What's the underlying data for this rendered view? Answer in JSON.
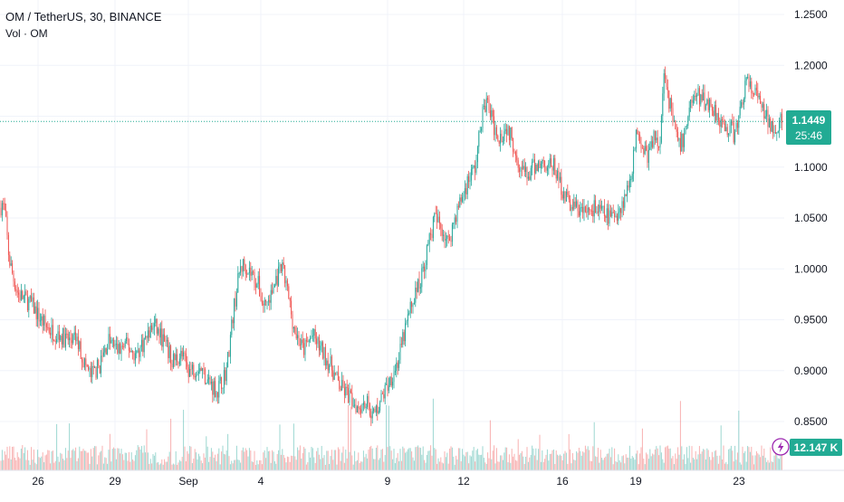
{
  "legend": {
    "symbol_title": "OM / TetherUS, 30, BINANCE",
    "volume_label": "Vol · OM"
  },
  "price_badge": {
    "price": "1.1449",
    "countdown": "25:46"
  },
  "volume_badge": {
    "value": "12.147 K"
  },
  "colors": {
    "up": "#26a69a",
    "down": "#ef5350",
    "last_price": "#22ab94",
    "grid": "#f0f3fa",
    "axis_text": "#131722"
  },
  "chart_data": {
    "type": "candlestick",
    "symbol": "OM / TetherUS",
    "interval": "30",
    "exchange": "BINANCE",
    "y_ticks": [
      0.85,
      0.9,
      0.95,
      1.0,
      1.05,
      1.1,
      1.15,
      1.2,
      1.25
    ],
    "y_tick_labels": [
      "0.8500",
      "0.9000",
      "0.9500",
      "1.0000",
      "1.0500",
      "1.1000",
      "1.1500",
      "1.2000",
      "1.2500"
    ],
    "ylim": [
      0.83,
      1.265
    ],
    "last_price": 1.1449,
    "x_ticks": [
      "26",
      "29",
      "Sep",
      "4",
      "9",
      "12",
      "16",
      "19",
      "23"
    ],
    "price_path": [
      [
        0,
        1.06
      ],
      [
        3,
        1.065
      ],
      [
        6,
        1.05
      ],
      [
        10,
        1.01
      ],
      [
        15,
        0.99
      ],
      [
        20,
        0.975
      ],
      [
        28,
        0.97
      ],
      [
        35,
        0.965
      ],
      [
        45,
        0.95
      ],
      [
        55,
        0.94
      ],
      [
        65,
        0.935
      ],
      [
        75,
        0.93
      ],
      [
        85,
        0.93
      ],
      [
        92,
        0.91
      ],
      [
        100,
        0.895
      ],
      [
        110,
        0.905
      ],
      [
        120,
        0.93
      ],
      [
        130,
        0.92
      ],
      [
        140,
        0.925
      ],
      [
        150,
        0.915
      ],
      [
        160,
        0.93
      ],
      [
        170,
        0.945
      ],
      [
        180,
        0.93
      ],
      [
        190,
        0.91
      ],
      [
        200,
        0.915
      ],
      [
        210,
        0.9
      ],
      [
        220,
        0.905
      ],
      [
        230,
        0.89
      ],
      [
        240,
        0.88
      ],
      [
        250,
        0.9
      ],
      [
        258,
        0.96
      ],
      [
        265,
        1.0
      ],
      [
        270,
        1.005
      ],
      [
        278,
        0.995
      ],
      [
        285,
        0.985
      ],
      [
        290,
        0.965
      ],
      [
        298,
        0.97
      ],
      [
        305,
        0.99
      ],
      [
        312,
        1.0
      ],
      [
        318,
        0.975
      ],
      [
        325,
        0.94
      ],
      [
        335,
        0.92
      ],
      [
        345,
        0.935
      ],
      [
        355,
        0.92
      ],
      [
        365,
        0.905
      ],
      [
        375,
        0.885
      ],
      [
        385,
        0.875
      ],
      [
        395,
        0.865
      ],
      [
        405,
        0.87
      ],
      [
        412,
        0.855
      ],
      [
        420,
        0.87
      ],
      [
        430,
        0.89
      ],
      [
        440,
        0.91
      ],
      [
        450,
        0.95
      ],
      [
        458,
        0.975
      ],
      [
        465,
        0.99
      ],
      [
        472,
        1.02
      ],
      [
        480,
        1.05
      ],
      [
        488,
        1.04
      ],
      [
        495,
        1.025
      ],
      [
        502,
        1.05
      ],
      [
        510,
        1.07
      ],
      [
        518,
        1.09
      ],
      [
        525,
        1.1
      ],
      [
        532,
        1.15
      ],
      [
        538,
        1.165
      ],
      [
        545,
        1.14
      ],
      [
        552,
        1.13
      ],
      [
        560,
        1.14
      ],
      [
        568,
        1.12
      ],
      [
        575,
        1.1
      ],
      [
        582,
        1.09
      ],
      [
        590,
        1.1
      ],
      [
        600,
        1.105
      ],
      [
        612,
        1.1
      ],
      [
        620,
        1.08
      ],
      [
        628,
        1.065
      ],
      [
        636,
        1.06
      ],
      [
        645,
        1.055
      ],
      [
        655,
        1.06
      ],
      [
        665,
        1.055
      ],
      [
        675,
        1.05
      ],
      [
        685,
        1.06
      ],
      [
        692,
        1.075
      ],
      [
        698,
        1.1
      ],
      [
        704,
        1.14
      ],
      [
        710,
        1.12
      ],
      [
        716,
        1.11
      ],
      [
        722,
        1.13
      ],
      [
        728,
        1.12
      ],
      [
        734,
        1.2
      ],
      [
        738,
        1.17
      ],
      [
        744,
        1.14
      ],
      [
        750,
        1.12
      ],
      [
        756,
        1.13
      ],
      [
        762,
        1.165
      ],
      [
        770,
        1.17
      ],
      [
        778,
        1.165
      ],
      [
        786,
        1.16
      ],
      [
        794,
        1.15
      ],
      [
        800,
        1.135
      ],
      [
        806,
        1.14
      ],
      [
        812,
        1.13
      ],
      [
        818,
        1.16
      ],
      [
        824,
        1.185
      ],
      [
        830,
        1.175
      ],
      [
        836,
        1.17
      ],
      [
        842,
        1.155
      ],
      [
        848,
        1.145
      ],
      [
        855,
        1.14
      ],
      [
        863,
        1.145
      ]
    ]
  }
}
